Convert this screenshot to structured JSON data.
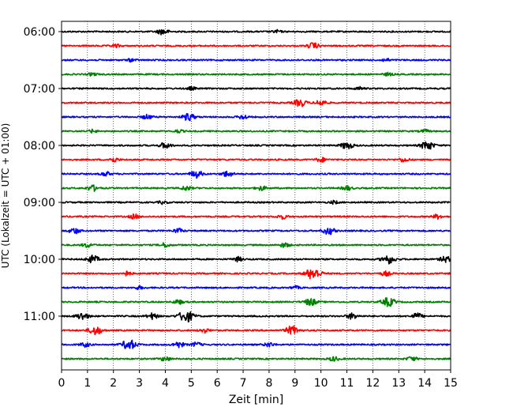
{
  "chart_data": {
    "type": "line",
    "title": "",
    "xlabel": "Zeit  [min]",
    "ylabel": "UTC (Lokalzeit = UTC + 01:00)",
    "xlim": [
      0,
      15
    ],
    "x_ticks": [
      "0",
      "1",
      "2",
      "3",
      "4",
      "5",
      "6",
      "7",
      "8",
      "9",
      "10",
      "11",
      "12",
      "13",
      "14",
      "15"
    ],
    "y_tick_labels": [
      "06:00",
      "07:00",
      "08:00",
      "09:00",
      "10:00",
      "11:00"
    ],
    "grid": "vertical dotted at each minute",
    "trace_interval_min": 15,
    "start_time_utc": "06:00",
    "trace_colors_cycle": [
      "#000000",
      "#ff0000",
      "#0000ff",
      "#008000"
    ],
    "traces": [
      {
        "start": "06:00",
        "color": "#000000",
        "events": [
          {
            "t": 3.9,
            "amp": 4
          },
          {
            "t": 8.3,
            "amp": 2
          }
        ]
      },
      {
        "start": "06:15",
        "color": "#ff0000",
        "events": [
          {
            "t": 9.7,
            "amp": 4
          },
          {
            "t": 2.1,
            "amp": 2
          }
        ]
      },
      {
        "start": "06:30",
        "color": "#0000ff",
        "events": [
          {
            "t": 2.7,
            "amp": 2
          },
          {
            "t": 12.5,
            "amp": 2
          }
        ]
      },
      {
        "start": "06:45",
        "color": "#008000",
        "events": [
          {
            "t": 1.2,
            "amp": 2
          },
          {
            "t": 12.6,
            "amp": 2
          }
        ]
      },
      {
        "start": "07:00",
        "color": "#000000",
        "events": [
          {
            "t": 5.0,
            "amp": 2
          },
          {
            "t": 11.5,
            "amp": 2
          }
        ]
      },
      {
        "start": "07:15",
        "color": "#ff0000",
        "events": [
          {
            "t": 9.2,
            "amp": 5
          },
          {
            "t": 10.0,
            "amp": 4
          }
        ]
      },
      {
        "start": "07:30",
        "color": "#0000ff",
        "events": [
          {
            "t": 3.3,
            "amp": 3
          },
          {
            "t": 4.9,
            "amp": 5
          },
          {
            "t": 7.0,
            "amp": 3
          }
        ]
      },
      {
        "start": "07:45",
        "color": "#008000",
        "events": [
          {
            "t": 1.2,
            "amp": 2
          },
          {
            "t": 4.5,
            "amp": 2
          },
          {
            "t": 14.0,
            "amp": 2
          }
        ]
      },
      {
        "start": "08:00",
        "color": "#000000",
        "events": [
          {
            "t": 4.0,
            "amp": 4
          },
          {
            "t": 11.0,
            "amp": 5
          },
          {
            "t": 14.1,
            "amp": 6
          }
        ]
      },
      {
        "start": "08:15",
        "color": "#ff0000",
        "events": [
          {
            "t": 2.0,
            "amp": 3
          },
          {
            "t": 10.0,
            "amp": 3
          },
          {
            "t": 13.2,
            "amp": 3
          }
        ]
      },
      {
        "start": "08:30",
        "color": "#0000ff",
        "events": [
          {
            "t": 1.7,
            "amp": 3
          },
          {
            "t": 5.2,
            "amp": 5
          },
          {
            "t": 6.4,
            "amp": 4
          }
        ]
      },
      {
        "start": "08:45",
        "color": "#008000",
        "events": [
          {
            "t": 1.2,
            "amp": 4
          },
          {
            "t": 4.8,
            "amp": 3
          },
          {
            "t": 7.7,
            "amp": 3
          },
          {
            "t": 11.0,
            "amp": 3
          }
        ]
      },
      {
        "start": "09:00",
        "color": "#000000",
        "events": [
          {
            "t": 3.9,
            "amp": 2
          },
          {
            "t": 10.5,
            "amp": 2
          }
        ]
      },
      {
        "start": "09:15",
        "color": "#ff0000",
        "events": [
          {
            "t": 2.8,
            "amp": 3
          },
          {
            "t": 8.5,
            "amp": 3
          },
          {
            "t": 14.5,
            "amp": 3
          }
        ]
      },
      {
        "start": "09:30",
        "color": "#0000ff",
        "events": [
          {
            "t": 0.5,
            "amp": 4
          },
          {
            "t": 4.5,
            "amp": 3
          },
          {
            "t": 10.3,
            "amp": 5
          }
        ]
      },
      {
        "start": "09:45",
        "color": "#008000",
        "events": [
          {
            "t": 1.0,
            "amp": 3
          },
          {
            "t": 4.0,
            "amp": 3
          },
          {
            "t": 8.6,
            "amp": 3
          }
        ]
      },
      {
        "start": "10:00",
        "color": "#000000",
        "events": [
          {
            "t": 1.2,
            "amp": 5
          },
          {
            "t": 6.8,
            "amp": 3
          },
          {
            "t": 12.6,
            "amp": 6
          },
          {
            "t": 14.8,
            "amp": 4
          }
        ]
      },
      {
        "start": "10:15",
        "color": "#ff0000",
        "events": [
          {
            "t": 2.5,
            "amp": 3
          },
          {
            "t": 9.7,
            "amp": 8
          },
          {
            "t": 12.5,
            "amp": 3
          }
        ]
      },
      {
        "start": "10:30",
        "color": "#0000ff",
        "events": [
          {
            "t": 3.0,
            "amp": 2
          },
          {
            "t": 9.0,
            "amp": 2
          }
        ]
      },
      {
        "start": "10:45",
        "color": "#008000",
        "events": [
          {
            "t": 4.5,
            "amp": 3
          },
          {
            "t": 9.6,
            "amp": 5
          },
          {
            "t": 12.6,
            "amp": 6
          }
        ]
      },
      {
        "start": "11:00",
        "color": "#000000",
        "events": [
          {
            "t": 0.8,
            "amp": 5
          },
          {
            "t": 3.5,
            "amp": 4
          },
          {
            "t": 4.8,
            "amp": 8
          },
          {
            "t": 11.2,
            "amp": 4
          },
          {
            "t": 13.7,
            "amp": 4
          }
        ]
      },
      {
        "start": "11:15",
        "color": "#ff0000",
        "events": [
          {
            "t": 1.3,
            "amp": 6
          },
          {
            "t": 5.5,
            "amp": 3
          },
          {
            "t": 8.9,
            "amp": 6
          }
        ]
      },
      {
        "start": "11:30",
        "color": "#0000ff",
        "events": [
          {
            "t": 0.9,
            "amp": 3
          },
          {
            "t": 2.6,
            "amp": 7
          },
          {
            "t": 4.5,
            "amp": 4
          },
          {
            "t": 5.2,
            "amp": 3
          },
          {
            "t": 8.0,
            "amp": 3
          }
        ]
      },
      {
        "start": "11:45",
        "color": "#008000",
        "events": [
          {
            "t": 4.0,
            "amp": 3
          },
          {
            "t": 10.5,
            "amp": 3
          },
          {
            "t": 13.5,
            "amp": 3
          }
        ]
      }
    ]
  }
}
